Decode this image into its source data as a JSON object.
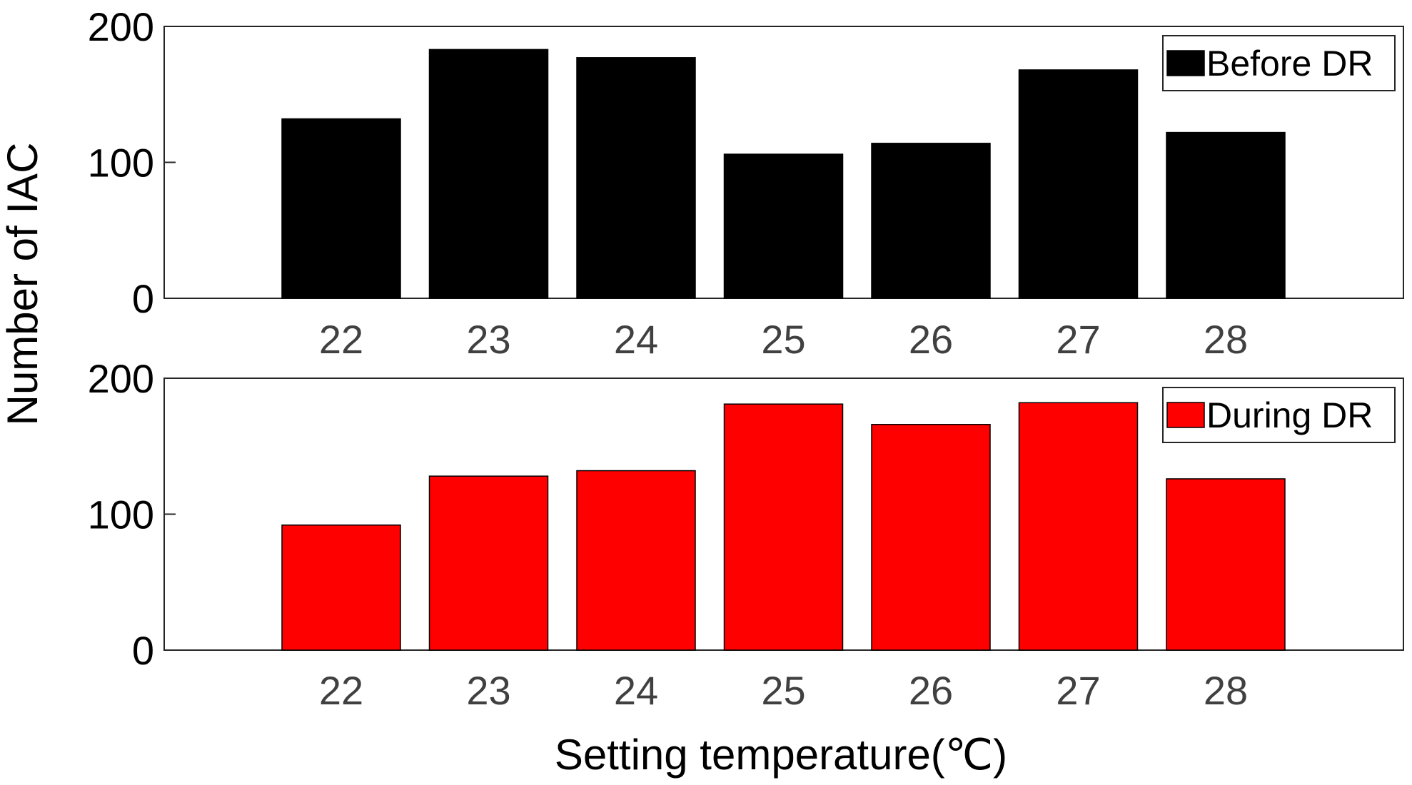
{
  "chart_data": [
    {
      "type": "bar",
      "categories": [
        "22",
        "23",
        "24",
        "25",
        "26",
        "27",
        "28"
      ],
      "values": [
        132,
        183,
        177,
        106,
        114,
        168,
        122
      ],
      "legend": "Before DR",
      "color": "#000000",
      "ylim": [
        0,
        200
      ],
      "yticks": [
        "0",
        "100",
        "200"
      ],
      "grid": false,
      "legend_position": "top-right"
    },
    {
      "type": "bar",
      "categories": [
        "22",
        "23",
        "24",
        "25",
        "26",
        "27",
        "28"
      ],
      "values": [
        92,
        128,
        132,
        181,
        166,
        182,
        126
      ],
      "legend": "During DR",
      "color": "#ff0000",
      "ylim": [
        0,
        200
      ],
      "yticks": [
        "0",
        "100",
        "200"
      ],
      "grid": false,
      "legend_position": "top-right"
    }
  ],
  "ylabel": "Number of IAC",
  "xlabel": "Setting temperature(℃)"
}
